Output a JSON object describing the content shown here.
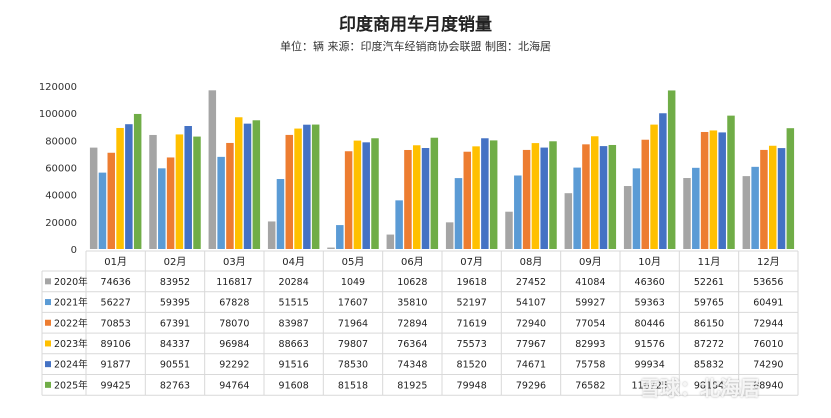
{
  "title": "印度商用车月度销量",
  "subtitle": "单位：辆 来源：印度汽车经销商协会联盟 制图：北海居",
  "watermark": "雪球：北海居",
  "chart_data": {
    "type": "bar",
    "categories": [
      "01月",
      "02月",
      "03月",
      "04月",
      "05月",
      "06月",
      "07月",
      "08月",
      "09月",
      "10月",
      "11月",
      "12月"
    ],
    "ylim": [
      0,
      120000
    ],
    "yticks": [
      0,
      20000,
      40000,
      60000,
      80000,
      100000,
      120000
    ],
    "grid": false,
    "legend": "table-below",
    "series": [
      {
        "name": "2020年",
        "color": "#a5a5a5",
        "values": [
          74636,
          83952,
          116817,
          20284,
          1049,
          10628,
          19618,
          27452,
          41084,
          46360,
          52261,
          53656
        ]
      },
      {
        "name": "2021年",
        "color": "#5b9bd5",
        "values": [
          56227,
          59395,
          67828,
          51515,
          17607,
          35810,
          52197,
          54107,
          59927,
          59363,
          59765,
          60491
        ]
      },
      {
        "name": "2022年",
        "color": "#ed7d31",
        "values": [
          70853,
          67391,
          78070,
          83987,
          71964,
          72894,
          71619,
          72940,
          77054,
          80446,
          86150,
          72944
        ]
      },
      {
        "name": "2023年",
        "color": "#ffc000",
        "values": [
          89106,
          84337,
          96984,
          88663,
          79807,
          76364,
          75573,
          77967,
          82993,
          91576,
          87272,
          76010
        ]
      },
      {
        "name": "2024年",
        "color": "#4472c4",
        "values": [
          91877,
          90551,
          92292,
          91516,
          78530,
          74348,
          81520,
          74671,
          75758,
          99934,
          85832,
          74290
        ]
      },
      {
        "name": "2025年",
        "color": "#70ad47",
        "values": [
          99425,
          82763,
          94764,
          91608,
          81518,
          81925,
          79948,
          79296,
          76582,
          116725,
          98184,
          88940
        ]
      }
    ]
  }
}
